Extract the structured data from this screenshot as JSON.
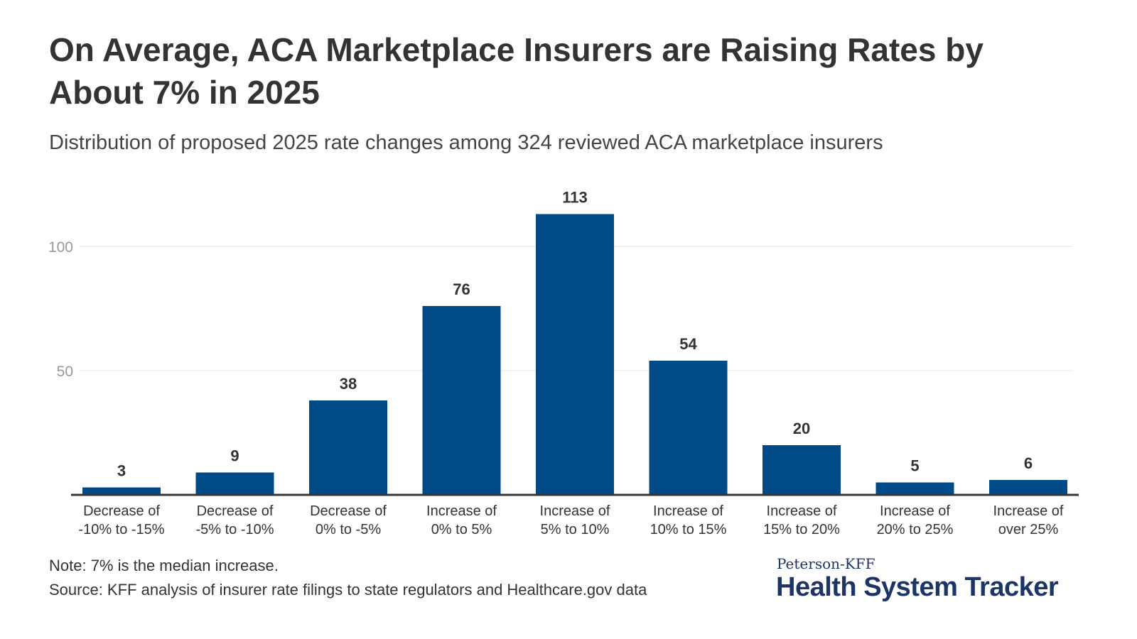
{
  "title": "On Average, ACA Marketplace Insurers are Raising Rates by About 7% in 2025",
  "subtitle": "Distribution of proposed 2025 rate changes among 324 reviewed ACA marketplace insurers",
  "note": "Note: 7% is the median increase.",
  "source": "Source: KFF analysis of insurer rate filings to state regulators and Healthcare.gov data",
  "logo": {
    "top": "Peterson-KFF",
    "main": "Health System Tracker"
  },
  "colors": {
    "bar": "#004a87",
    "grid": "#e6e6e6",
    "axis": "#333333",
    "logo": "#1d3466"
  },
  "chart_data": {
    "type": "bar",
    "categories": [
      [
        "Decrease of",
        "-10% to -15%"
      ],
      [
        "Decrease of",
        "-5% to -10%"
      ],
      [
        "Decrease of",
        "0% to -5%"
      ],
      [
        "Increase of",
        "0% to 5%"
      ],
      [
        "Increase of",
        "5% to 10%"
      ],
      [
        "Increase of",
        "10% to 15%"
      ],
      [
        "Increase of",
        "15% to 20%"
      ],
      [
        "Increase of",
        "20% to 25%"
      ],
      [
        "Increase of",
        "over 25%"
      ]
    ],
    "values": [
      3,
      9,
      38,
      76,
      113,
      54,
      20,
      5,
      6
    ],
    "yticks": [
      50,
      100
    ],
    "ylim": [
      0,
      120
    ],
    "grid": true,
    "data_labels": true
  }
}
